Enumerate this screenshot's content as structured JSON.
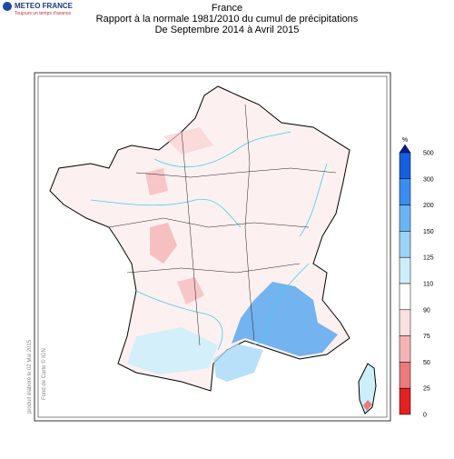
{
  "header": {
    "brand": "METEO FRANCE",
    "tagline": "Toujours un temps d'avance"
  },
  "title": {
    "line1": "France",
    "line2": "Rapport à la normale 1981/2010 du cumul de précipitations",
    "line3": "De Septembre 2014 à Avril 2015"
  },
  "side_notes": {
    "produced": "produit élaboré le 02 Mai 2015",
    "basemap": "Fond de Carte © IGN"
  },
  "legend": {
    "unit": "%",
    "labels": [
      "500",
      "300",
      "200",
      "150",
      "125",
      "110",
      "90",
      "75",
      "50",
      "25",
      "0"
    ],
    "colors": [
      "#1560e0",
      "#3a8ef0",
      "#6ab4f5",
      "#9ad2f8",
      "#cdeefb",
      "#ffffff",
      "#fbe0e0",
      "#f4b4b4",
      "#ec7a7a",
      "#e42020"
    ],
    "top_color": "#0a1aa0"
  }
}
